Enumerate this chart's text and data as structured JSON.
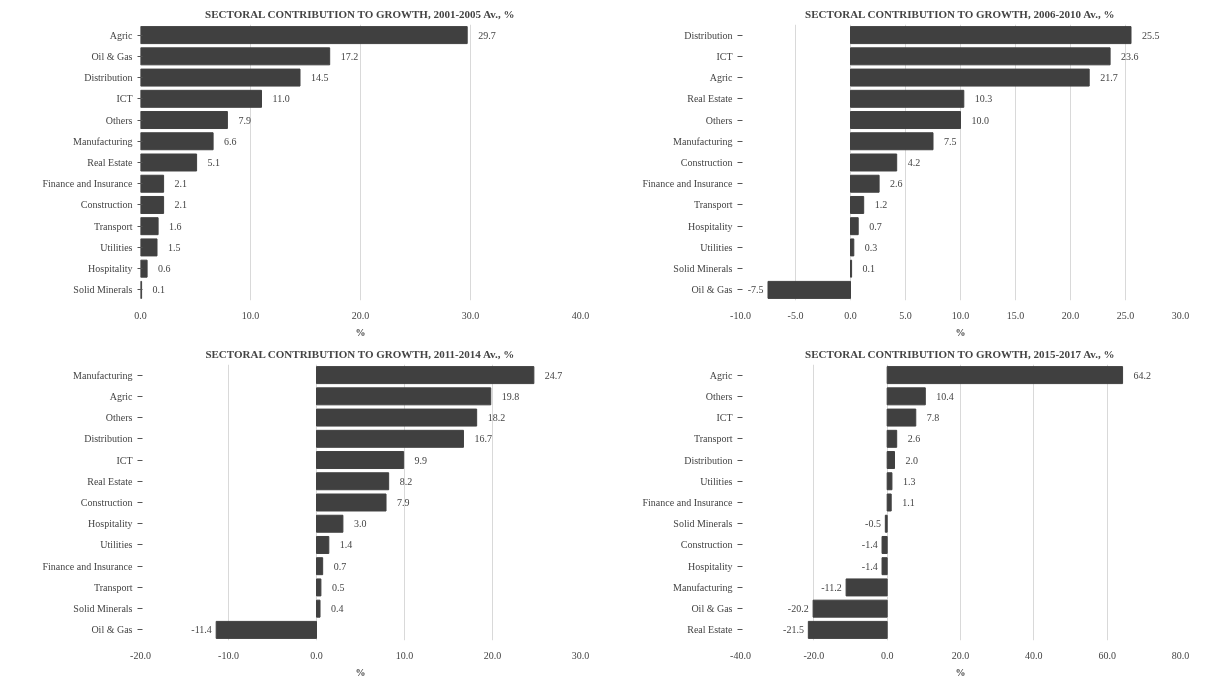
{
  "chart_data": [
    {
      "type": "bar",
      "orientation": "horizontal",
      "title": "SECTORAL CONTRIBUTION TO GROWTH, 2001-2005 Av., %",
      "xlabel": "%",
      "grid": "x",
      "color": "#404040",
      "categories": [
        "Agric",
        "Oil & Gas",
        "Distribution",
        "ICT",
        "Others",
        "Manufacturing",
        "Real Estate",
        "Finance and Insurance",
        "Construction",
        "Transport",
        "Utilities",
        "Hospitality",
        "Solid Minerals"
      ],
      "values": [
        29.7,
        17.2,
        14.5,
        11.0,
        7.9,
        6.6,
        5.1,
        2.1,
        2.1,
        1.6,
        1.5,
        0.6,
        0.1
      ],
      "value_labels": [
        "29.7",
        "17.2",
        "14.5",
        "11.0",
        "7.9",
        "6.6",
        "5.1",
        "2.1",
        "2.1",
        "1.6",
        "1.5",
        "0.6",
        "0.1"
      ],
      "xlim": [
        0,
        40
      ],
      "xticks": [
        {
          "value": 0,
          "label": "0.0"
        },
        {
          "value": 10,
          "label": "10.0"
        },
        {
          "value": 20,
          "label": "20.0"
        },
        {
          "value": 30,
          "label": "30.0"
        },
        {
          "value": 40,
          "label": "40.0"
        }
      ]
    },
    {
      "type": "bar",
      "orientation": "horizontal",
      "title": "SECTORAL CONTRIBUTION TO GROWTH, 2006-2010 Av., %",
      "xlabel": "%",
      "grid": "x",
      "color": "#404040",
      "categories": [
        "Distribution",
        "ICT",
        "Agric",
        "Real Estate",
        "Others",
        "Manufacturing",
        "Construction",
        "Finance and Insurance",
        "Transport",
        "Hospitality",
        "Utilities",
        "Solid Minerals",
        "Oil & Gas"
      ],
      "values": [
        25.5,
        23.6,
        21.7,
        10.3,
        10.0,
        7.5,
        4.2,
        2.6,
        1.2,
        0.7,
        0.3,
        0.1,
        -7.5
      ],
      "value_labels": [
        "25.5",
        "23.6",
        "21.7",
        "10.3",
        "10.0",
        "7.5",
        "4.2",
        "2.6",
        "1.2",
        "0.7",
        "0.3",
        "0.1",
        "-7.5"
      ],
      "xlim": [
        -10,
        30
      ],
      "xticks": [
        {
          "value": -10,
          "label": "-10.0"
        },
        {
          "value": -5,
          "label": "-5.0"
        },
        {
          "value": 0,
          "label": "0.0"
        },
        {
          "value": 5,
          "label": "5.0"
        },
        {
          "value": 10,
          "label": "10.0"
        },
        {
          "value": 15,
          "label": "15.0"
        },
        {
          "value": 20,
          "label": "20.0"
        },
        {
          "value": 25,
          "label": "25.0"
        },
        {
          "value": 30,
          "label": "30.0"
        }
      ]
    },
    {
      "type": "bar",
      "orientation": "horizontal",
      "title": "SECTORAL CONTRIBUTION TO GROWTH, 2011-2014 Av., %",
      "xlabel": "%",
      "grid": "x",
      "color": "#404040",
      "categories": [
        "Manufacturing",
        "Agric",
        "Others",
        "Distribution",
        "ICT",
        "Real Estate",
        "Construction",
        "Hospitality",
        "Utilities",
        "Finance and Insurance",
        "Transport",
        "Solid Minerals",
        "Oil & Gas"
      ],
      "values": [
        24.7,
        19.8,
        18.2,
        16.7,
        9.9,
        8.2,
        7.9,
        3.0,
        1.4,
        0.7,
        0.5,
        0.4,
        -11.4
      ],
      "value_labels": [
        "24.7",
        "19.8",
        "18.2",
        "16.7",
        "9.9",
        "8.2",
        "7.9",
        "3.0",
        "1.4",
        "0.7",
        "0.5",
        "0.4",
        "-11.4"
      ],
      "xlim": [
        -20,
        30
      ],
      "xticks": [
        {
          "value": -20,
          "label": "-20.0"
        },
        {
          "value": -10,
          "label": "-10.0"
        },
        {
          "value": 0,
          "label": "0.0"
        },
        {
          "value": 10,
          "label": "10.0"
        },
        {
          "value": 20,
          "label": "20.0"
        },
        {
          "value": 30,
          "label": "30.0"
        }
      ]
    },
    {
      "type": "bar",
      "orientation": "horizontal",
      "title": "SECTORAL CONTRIBUTION TO GROWTH, 2015-2017 Av., %",
      "xlabel": "%",
      "grid": "x",
      "color": "#404040",
      "categories": [
        "Agric",
        "Others",
        "ICT",
        "Transport",
        "Distribution",
        "Utilities",
        "Finance and Insurance",
        "Solid Minerals",
        "Construction",
        "Hospitality",
        "Manufacturing",
        "Oil & Gas",
        "Real Estate"
      ],
      "values": [
        64.2,
        10.4,
        7.8,
        2.6,
        2.0,
        1.3,
        1.1,
        -0.5,
        -1.4,
        -1.4,
        -11.2,
        -20.2,
        -21.5
      ],
      "value_labels": [
        "64.2",
        "10.4",
        "7.8",
        "2.6",
        "2.0",
        "1.3",
        "1.1",
        "-0.5",
        "-1.4",
        "-1.4",
        "-11.2",
        "-20.2",
        "-21.5"
      ],
      "xlim": [
        -40,
        80
      ],
      "xticks": [
        {
          "value": -40,
          "label": "-40.0"
        },
        {
          "value": -20,
          "label": "-20.0"
        },
        {
          "value": 0,
          "label": "0.0"
        },
        {
          "value": 20,
          "label": "20.0"
        },
        {
          "value": 40,
          "label": "40.0"
        },
        {
          "value": 60,
          "label": "60.0"
        },
        {
          "value": 80,
          "label": "80.0"
        }
      ]
    }
  ]
}
